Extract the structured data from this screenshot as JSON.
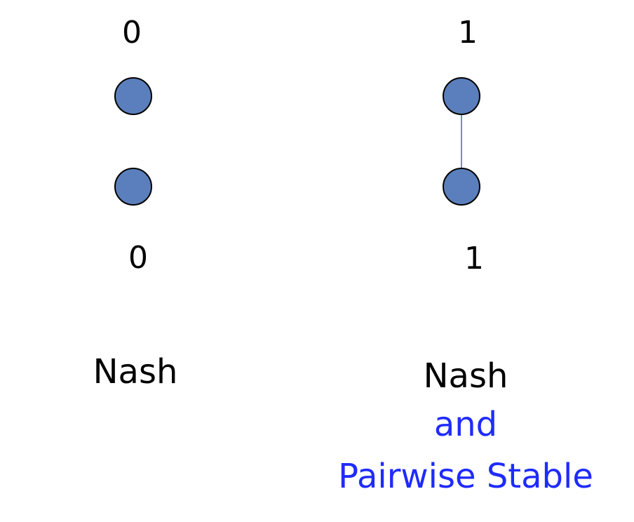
{
  "colors": {
    "node_fill": "#5b7fbc",
    "node_stroke": "#000000",
    "edge": "#6f8fd0",
    "text": "#000000",
    "highlight_text": "#1f2bff"
  },
  "left_network": {
    "top_payoff": "0",
    "bottom_payoff": "0",
    "caption": "Nash",
    "has_link": false
  },
  "right_network": {
    "top_payoff": "1",
    "bottom_payoff": "1",
    "caption": "Nash",
    "caption_line2": "and",
    "caption_line3": "Pairwise Stable",
    "has_link": true
  }
}
